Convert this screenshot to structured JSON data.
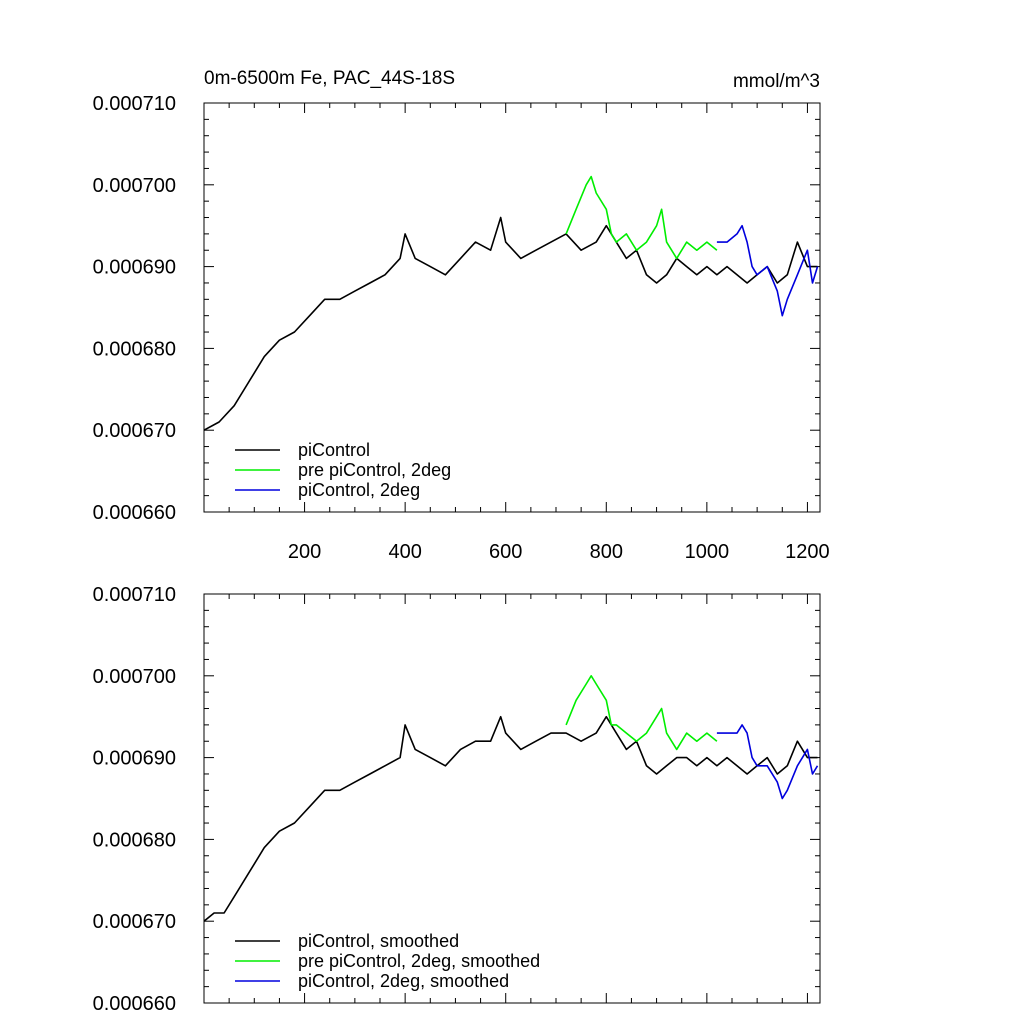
{
  "header": {
    "title": "0m-6500m Fe, PAC_44S-18S",
    "units": "mmol/m^3"
  },
  "chart_data": [
    {
      "type": "line",
      "title": "0m-6500m Fe, PAC_44S-18S",
      "units": "mmol/m^3",
      "xlim": [
        0,
        1225
      ],
      "ylim": [
        0.00066,
        0.00071
      ],
      "xticks": [
        200,
        400,
        600,
        800,
        1000,
        1200
      ],
      "xtick_labels": [
        "200",
        "400",
        "600",
        "800",
        "1000",
        "1200"
      ],
      "yticks": [
        0.00066,
        0.00067,
        0.00068,
        0.00069,
        0.0007,
        0.00071
      ],
      "ytick_labels": [
        "0.000660",
        "0.000670",
        "0.000680",
        "0.000690",
        "0.000700",
        "0.000710"
      ],
      "legend_position": "bottom-left",
      "series": [
        {
          "name": "piControl",
          "color": "#000000",
          "x": [
            0,
            30,
            60,
            90,
            120,
            150,
            180,
            210,
            240,
            270,
            300,
            330,
            360,
            390,
            400,
            420,
            450,
            480,
            510,
            540,
            570,
            590,
            600,
            630,
            660,
            690,
            720,
            750,
            780,
            800,
            820,
            840,
            860,
            880,
            900,
            920,
            940,
            960,
            980,
            1000,
            1020,
            1040,
            1060,
            1080,
            1100,
            1120,
            1140,
            1160,
            1180,
            1200,
            1220
          ],
          "y": [
            0.00067,
            0.000671,
            0.000673,
            0.000676,
            0.000679,
            0.000681,
            0.000682,
            0.000684,
            0.000686,
            0.000686,
            0.000687,
            0.000688,
            0.000689,
            0.000691,
            0.000694,
            0.000691,
            0.00069,
            0.000689,
            0.000691,
            0.000693,
            0.000692,
            0.000696,
            0.000693,
            0.000691,
            0.000692,
            0.000693,
            0.000694,
            0.000692,
            0.000693,
            0.000695,
            0.000693,
            0.000691,
            0.000692,
            0.000689,
            0.000688,
            0.000689,
            0.000691,
            0.00069,
            0.000689,
            0.00069,
            0.000689,
            0.00069,
            0.000689,
            0.000688,
            0.000689,
            0.00069,
            0.000688,
            0.000689,
            0.000693,
            0.00069,
            0.00069
          ]
        },
        {
          "name": "pre piControl, 2deg",
          "color": "#00ee00",
          "x": [
            720,
            740,
            760,
            770,
            780,
            800,
            810,
            820,
            840,
            860,
            880,
            900,
            910,
            920,
            940,
            960,
            980,
            1000,
            1020
          ],
          "y": [
            0.000694,
            0.000697,
            0.0007,
            0.000701,
            0.000699,
            0.000697,
            0.000694,
            0.000693,
            0.000694,
            0.000692,
            0.000693,
            0.000695,
            0.000697,
            0.000693,
            0.000691,
            0.000693,
            0.000692,
            0.000693,
            0.000692
          ]
        },
        {
          "name": "piControl, 2deg",
          "color": "#0000dd",
          "x": [
            1020,
            1040,
            1060,
            1070,
            1080,
            1090,
            1100,
            1120,
            1140,
            1150,
            1160,
            1180,
            1200,
            1210,
            1220
          ],
          "y": [
            0.000693,
            0.000693,
            0.000694,
            0.000695,
            0.000693,
            0.00069,
            0.000689,
            0.00069,
            0.000687,
            0.000684,
            0.000686,
            0.000689,
            0.000692,
            0.000688,
            0.00069
          ]
        }
      ]
    },
    {
      "type": "line",
      "xlim": [
        0,
        1225
      ],
      "ylim": [
        0.00066,
        0.00071
      ],
      "xticks": [
        200,
        400,
        600,
        800,
        1000,
        1200
      ],
      "yticks": [
        0.00066,
        0.00067,
        0.00068,
        0.00069,
        0.0007,
        0.00071
      ],
      "ytick_labels": [
        "0.000660",
        "0.000670",
        "0.000680",
        "0.000690",
        "0.000700",
        "0.000710"
      ],
      "legend_position": "bottom-left",
      "series": [
        {
          "name": "piControl, smoothed",
          "color": "#000000",
          "x": [
            0,
            20,
            40,
            60,
            90,
            120,
            150,
            180,
            210,
            240,
            270,
            300,
            330,
            360,
            390,
            400,
            420,
            450,
            480,
            510,
            540,
            570,
            590,
            600,
            630,
            660,
            690,
            720,
            750,
            780,
            800,
            820,
            840,
            860,
            880,
            900,
            920,
            940,
            960,
            980,
            1000,
            1020,
            1040,
            1060,
            1080,
            1100,
            1120,
            1140,
            1160,
            1180,
            1200,
            1220
          ],
          "y": [
            0.00067,
            0.000671,
            0.000671,
            0.000673,
            0.000676,
            0.000679,
            0.000681,
            0.000682,
            0.000684,
            0.000686,
            0.000686,
            0.000687,
            0.000688,
            0.000689,
            0.00069,
            0.000694,
            0.000691,
            0.00069,
            0.000689,
            0.000691,
            0.000692,
            0.000692,
            0.000695,
            0.000693,
            0.000691,
            0.000692,
            0.000693,
            0.000693,
            0.000692,
            0.000693,
            0.000695,
            0.000693,
            0.000691,
            0.000692,
            0.000689,
            0.000688,
            0.000689,
            0.00069,
            0.00069,
            0.000689,
            0.00069,
            0.000689,
            0.00069,
            0.000689,
            0.000688,
            0.000689,
            0.00069,
            0.000688,
            0.000689,
            0.000692,
            0.00069,
            0.00069
          ]
        },
        {
          "name": "pre piControl, 2deg, smoothed",
          "color": "#00ee00",
          "x": [
            720,
            740,
            760,
            770,
            780,
            800,
            810,
            820,
            840,
            860,
            880,
            900,
            910,
            920,
            940,
            960,
            980,
            1000,
            1020
          ],
          "y": [
            0.000694,
            0.000697,
            0.000699,
            0.0007,
            0.000699,
            0.000697,
            0.000694,
            0.000694,
            0.000693,
            0.000692,
            0.000693,
            0.000695,
            0.000696,
            0.000693,
            0.000691,
            0.000693,
            0.000692,
            0.000693,
            0.000692
          ]
        },
        {
          "name": "piControl, 2deg, smoothed",
          "color": "#0000dd",
          "x": [
            1020,
            1040,
            1060,
            1070,
            1080,
            1090,
            1100,
            1120,
            1140,
            1150,
            1160,
            1180,
            1200,
            1210,
            1220
          ],
          "y": [
            0.000693,
            0.000693,
            0.000693,
            0.000694,
            0.000693,
            0.00069,
            0.000689,
            0.000689,
            0.000687,
            0.000685,
            0.000686,
            0.000689,
            0.000691,
            0.000688,
            0.000689
          ]
        }
      ]
    }
  ]
}
